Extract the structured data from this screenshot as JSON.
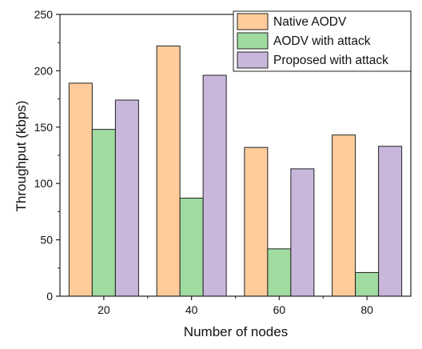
{
  "chart_data": {
    "type": "bar",
    "title": "",
    "xlabel": "Number of nodes",
    "ylabel": "Throughput (kbps)",
    "categories": [
      "20",
      "40",
      "60",
      "80"
    ],
    "ylim": [
      0,
      250
    ],
    "yticks": [
      0,
      50,
      100,
      150,
      200,
      250
    ],
    "series": [
      {
        "name": "Native AODV",
        "color": "#FDCC9A",
        "values": [
          189,
          222,
          132,
          143
        ]
      },
      {
        "name": "AODV with attack",
        "color": "#A0DBA0",
        "values": [
          148,
          87,
          42,
          21
        ]
      },
      {
        "name": "Proposed with attack",
        "color": "#C8B7DB",
        "values": [
          174,
          196,
          113,
          133
        ]
      }
    ],
    "legend": "top-right",
    "grid": false
  }
}
